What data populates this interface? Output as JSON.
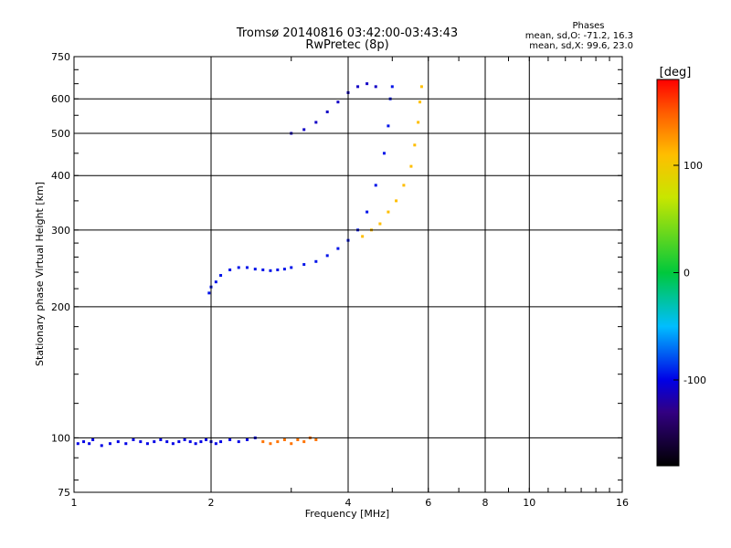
{
  "chart_data": {
    "type": "scatter",
    "title": "Tromsø 20140816 03:42:00-03:43:43",
    "subtitle": "RwPretec (8p)",
    "xlabel": "Frequency [MHz]",
    "ylabel": "Stationary phase Virtual Height [km]",
    "x_scale": "log",
    "y_scale": "log",
    "xlim": [
      1,
      16
    ],
    "ylim": [
      75,
      750
    ],
    "x_ticks": [
      1,
      2,
      4,
      6,
      8,
      10,
      16
    ],
    "y_ticks": [
      75,
      100,
      200,
      300,
      400,
      500,
      600,
      750
    ],
    "grid": true,
    "legend": {
      "title": "Phases",
      "lines": [
        "mean, sd,O: -71.2, 16.3",
        "mean, sd,X:  99.6, 23.0"
      ],
      "position": "top-right"
    },
    "colorbar": {
      "label": "[deg]",
      "min": -180,
      "max": 180,
      "ticks": [
        100,
        0,
        -100
      ],
      "position": "right"
    },
    "traces": [
      {
        "kind": "E-layer",
        "phase": -100,
        "points": [
          [
            1.02,
            97
          ],
          [
            1.05,
            98
          ],
          [
            1.08,
            97
          ],
          [
            1.1,
            99
          ],
          [
            1.15,
            96
          ],
          [
            1.2,
            97
          ],
          [
            1.25,
            98
          ],
          [
            1.3,
            97
          ],
          [
            1.35,
            99
          ],
          [
            1.4,
            98
          ],
          [
            1.45,
            97
          ],
          [
            1.5,
            98
          ],
          [
            1.55,
            99
          ],
          [
            1.6,
            98
          ],
          [
            1.65,
            97
          ],
          [
            1.7,
            98
          ],
          [
            1.75,
            99
          ],
          [
            1.8,
            98
          ],
          [
            1.85,
            97
          ],
          [
            1.9,
            98
          ],
          [
            1.95,
            99
          ],
          [
            2.0,
            98
          ],
          [
            2.05,
            97
          ],
          [
            2.1,
            98
          ],
          [
            2.2,
            99
          ],
          [
            2.3,
            98
          ],
          [
            2.4,
            99
          ],
          [
            2.5,
            100
          ]
        ]
      },
      {
        "kind": "Es-layer",
        "phase": 140,
        "points": [
          [
            2.6,
            98
          ],
          [
            2.7,
            97
          ],
          [
            2.8,
            98
          ],
          [
            2.9,
            99
          ],
          [
            3.0,
            97
          ],
          [
            3.1,
            99
          ],
          [
            3.2,
            98
          ],
          [
            3.3,
            100
          ],
          [
            3.4,
            99
          ]
        ]
      },
      {
        "kind": "F-layer O-trace",
        "phase": -95,
        "points": [
          [
            1.98,
            215
          ],
          [
            2.0,
            222
          ],
          [
            2.05,
            228
          ],
          [
            2.1,
            236
          ],
          [
            2.2,
            243
          ],
          [
            2.3,
            246
          ],
          [
            2.4,
            246
          ],
          [
            2.5,
            244
          ],
          [
            2.6,
            243
          ],
          [
            2.7,
            242
          ],
          [
            2.8,
            243
          ],
          [
            2.9,
            244
          ],
          [
            3.0,
            246
          ],
          [
            3.2,
            250
          ],
          [
            3.4,
            254
          ],
          [
            3.6,
            262
          ],
          [
            3.8,
            272
          ],
          [
            4.0,
            284
          ],
          [
            4.2,
            300
          ],
          [
            4.4,
            330
          ],
          [
            4.6,
            380
          ],
          [
            4.8,
            450
          ],
          [
            4.9,
            520
          ],
          [
            4.95,
            600
          ],
          [
            5.0,
            640
          ]
        ]
      },
      {
        "kind": "F-layer X-trace",
        "phase": 110,
        "points": [
          [
            4.3,
            290
          ],
          [
            4.5,
            300
          ],
          [
            4.7,
            310
          ],
          [
            4.9,
            330
          ],
          [
            5.1,
            350
          ],
          [
            5.3,
            380
          ],
          [
            5.5,
            420
          ],
          [
            5.6,
            470
          ],
          [
            5.7,
            530
          ],
          [
            5.75,
            590
          ],
          [
            5.8,
            640
          ]
        ]
      },
      {
        "kind": "Oblique trace",
        "phase": -110,
        "points": [
          [
            3.0,
            500
          ],
          [
            3.2,
            510
          ],
          [
            3.4,
            530
          ],
          [
            3.6,
            560
          ],
          [
            3.8,
            590
          ],
          [
            4.0,
            620
          ],
          [
            4.2,
            640
          ],
          [
            4.4,
            650
          ],
          [
            4.6,
            640
          ]
        ]
      }
    ]
  }
}
